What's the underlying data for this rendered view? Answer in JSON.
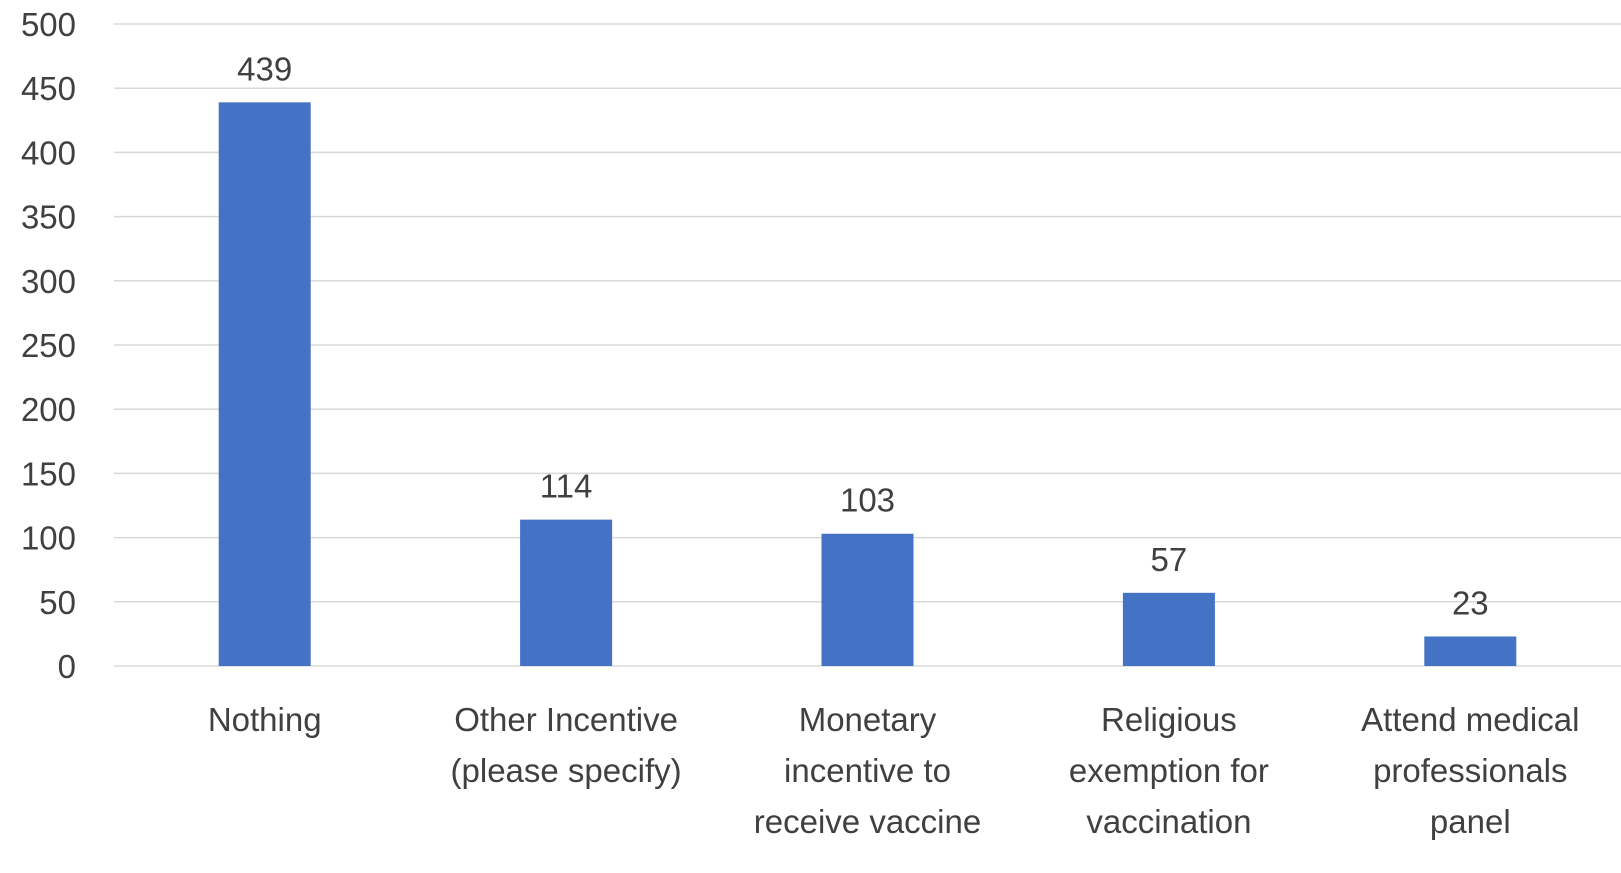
{
  "chart_data": {
    "type": "bar",
    "title": "",
    "xlabel": "",
    "ylabel": "",
    "categories": [
      [
        "Nothing"
      ],
      [
        "Other Incentive",
        "(please specify)"
      ],
      [
        "Monetary",
        "incentive to",
        "receive vaccine"
      ],
      [
        "Religious",
        "exemption for",
        "vaccination"
      ],
      [
        "Attend medical",
        "professionals",
        "panel"
      ]
    ],
    "values": [
      439,
      114,
      103,
      57,
      23
    ],
    "data_labels": [
      "439",
      "114",
      "103",
      "57",
      "23"
    ],
    "ylim": [
      0,
      500
    ],
    "yticks": [
      "0",
      "50",
      "100",
      "150",
      "200",
      "250",
      "300",
      "350",
      "400",
      "450",
      "500"
    ],
    "grid": true,
    "legend": "none",
    "colors": {
      "bar": "#4472C4",
      "grid": "#D9D9D9",
      "text": "#404040"
    }
  }
}
